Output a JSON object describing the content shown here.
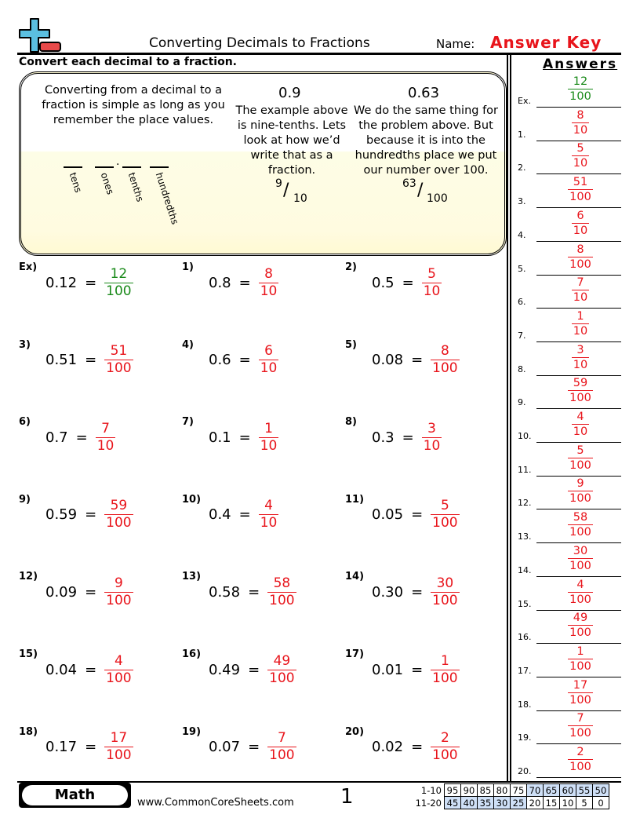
{
  "header": {
    "title": "Converting Decimals to Fractions",
    "name_label": "Name:",
    "name_value": "Answer Key",
    "instructions": "Convert each decimal to a fraction."
  },
  "answers_heading": "Answers",
  "example_box": {
    "intro": "Converting from a decimal to a fraction is simple as long as you remember the place values.",
    "place_values": [
      "tens",
      "ones",
      "tenths",
      "hundredths"
    ],
    "example1": {
      "decimal": "0.9",
      "text": "The example above is nine-tenths. Lets look at how we’d write that as a fraction.",
      "num": "9",
      "den": "10"
    },
    "example2": {
      "decimal": "0.63",
      "text": "We do the same thing for the problem above. But because it is into the hundredths place we put our number over 100.",
      "num": "63",
      "den": "100"
    }
  },
  "problems": [
    {
      "label": "Ex)",
      "decimal": "0.12",
      "num": "12",
      "den": "100"
    },
    {
      "label": "1)",
      "decimal": "0.8",
      "num": "8",
      "den": "10"
    },
    {
      "label": "2)",
      "decimal": "0.5",
      "num": "5",
      "den": "10"
    },
    {
      "label": "3)",
      "decimal": "0.51",
      "num": "51",
      "den": "100"
    },
    {
      "label": "4)",
      "decimal": "0.6",
      "num": "6",
      "den": "10"
    },
    {
      "label": "5)",
      "decimal": "0.08",
      "num": "8",
      "den": "100"
    },
    {
      "label": "6)",
      "decimal": "0.7",
      "num": "7",
      "den": "10"
    },
    {
      "label": "7)",
      "decimal": "0.1",
      "num": "1",
      "den": "10"
    },
    {
      "label": "8)",
      "decimal": "0.3",
      "num": "3",
      "den": "10"
    },
    {
      "label": "9)",
      "decimal": "0.59",
      "num": "59",
      "den": "100"
    },
    {
      "label": "10)",
      "decimal": "0.4",
      "num": "4",
      "den": "10"
    },
    {
      "label": "11)",
      "decimal": "0.05",
      "num": "5",
      "den": "100"
    },
    {
      "label": "12)",
      "decimal": "0.09",
      "num": "9",
      "den": "100"
    },
    {
      "label": "13)",
      "decimal": "0.58",
      "num": "58",
      "den": "100"
    },
    {
      "label": "14)",
      "decimal": "0.30",
      "num": "30",
      "den": "100"
    },
    {
      "label": "15)",
      "decimal": "0.04",
      "num": "4",
      "den": "100"
    },
    {
      "label": "16)",
      "decimal": "0.49",
      "num": "49",
      "den": "100"
    },
    {
      "label": "17)",
      "decimal": "0.01",
      "num": "1",
      "den": "100"
    },
    {
      "label": "18)",
      "decimal": "0.17",
      "num": "17",
      "den": "100"
    },
    {
      "label": "19)",
      "decimal": "0.07",
      "num": "7",
      "den": "100"
    },
    {
      "label": "20)",
      "decimal": "0.02",
      "num": "2",
      "den": "100"
    }
  ],
  "answer_labels": [
    "Ex.",
    "1.",
    "2.",
    "3.",
    "4.",
    "5.",
    "6.",
    "7.",
    "8.",
    "9.",
    "10.",
    "11.",
    "12.",
    "13.",
    "14.",
    "15.",
    "16.",
    "17.",
    "18.",
    "19.",
    "20."
  ],
  "equals": "=",
  "footer": {
    "badge": "Math",
    "site": "www.CommonCoreSheets.com",
    "page": "1",
    "score_rows": [
      {
        "label": "1-10",
        "values": [
          "95",
          "90",
          "85",
          "80",
          "75",
          "70",
          "65",
          "60",
          "55",
          "50"
        ],
        "highlight": [
          5,
          6,
          7,
          8,
          9
        ]
      },
      {
        "label": "11-20",
        "values": [
          "45",
          "40",
          "35",
          "30",
          "25",
          "20",
          "15",
          "10",
          "5",
          "0"
        ],
        "highlight": [
          0,
          1,
          2,
          3,
          4
        ]
      }
    ]
  },
  "colors": {
    "answer": "#e8141b",
    "example": "#1a8a1a",
    "logo_plus": "#5bbfe0",
    "logo_minus": "#e84a4a",
    "score_highlight": "#cfe0f7"
  }
}
